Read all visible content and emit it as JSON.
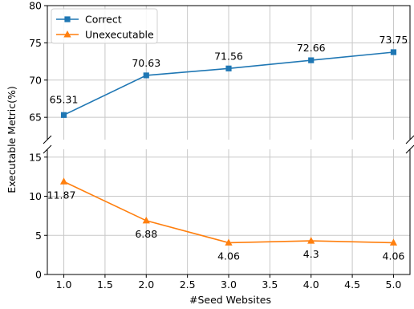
{
  "chart_data": {
    "type": "line",
    "xlabel": "#Seed Websites",
    "ylabel": "Executable Metric(%)",
    "x_ticks": [
      "1.0",
      "1.5",
      "2.0",
      "2.5",
      "3.0",
      "3.5",
      "4.0",
      "4.5",
      "5.0"
    ],
    "x_tick_values": [
      1.0,
      1.5,
      2.0,
      2.5,
      3.0,
      3.5,
      4.0,
      4.5,
      5.0
    ],
    "xlim": [
      0.8,
      5.2
    ],
    "top_panel": {
      "ylim": [
        62,
        80
      ],
      "y_ticks": [
        "65",
        "70",
        "75",
        "80"
      ],
      "y_tick_values": [
        65,
        70,
        75,
        80
      ]
    },
    "bottom_panel": {
      "ylim": [
        0,
        16
      ],
      "y_ticks": [
        "0",
        "5",
        "10",
        "15"
      ],
      "y_tick_values": [
        0,
        5,
        10,
        15
      ]
    },
    "grid": true,
    "legend_position": "top-left",
    "series": [
      {
        "name": "Correct",
        "panel": "top",
        "color": "#1f77b4",
        "marker": "square",
        "x": [
          1,
          2,
          3,
          4,
          5
        ],
        "values": [
          65.31,
          70.63,
          71.56,
          72.66,
          73.75
        ],
        "labels": [
          "65.31",
          "70.63",
          "71.56",
          "72.66",
          "73.75"
        ]
      },
      {
        "name": "Unexecutable",
        "panel": "bottom",
        "color": "#ff7f0e",
        "marker": "triangle",
        "x": [
          1,
          2,
          3,
          4,
          5
        ],
        "values": [
          11.87,
          6.88,
          4.06,
          4.3,
          4.06
        ],
        "labels": [
          "11.87",
          "6.88",
          "4.06",
          "4.3",
          "4.06"
        ]
      }
    ]
  }
}
